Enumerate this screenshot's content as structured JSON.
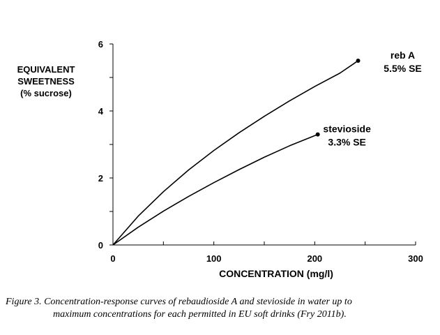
{
  "chart_data": {
    "type": "line",
    "xlabel": "CONCENTRATION (mg/l)",
    "ylabel_lines": [
      "EQUIVALENT",
      "SWEETNESS",
      "(% sucrose)"
    ],
    "xlim": [
      0,
      300
    ],
    "ylim": [
      0,
      6
    ],
    "x_ticks": [
      0,
      100,
      200,
      300
    ],
    "y_ticks": [
      0,
      2,
      4,
      6
    ],
    "grid": false,
    "series": [
      {
        "name": "reb A",
        "end_label": [
          "reb A",
          "5.5% SE"
        ],
        "x": [
          0,
          25,
          50,
          75,
          100,
          125,
          150,
          175,
          200,
          225,
          243
        ],
        "y": [
          0,
          0.86,
          1.59,
          2.24,
          2.82,
          3.35,
          3.84,
          4.3,
          4.73,
          5.13,
          5.5
        ]
      },
      {
        "name": "stevioside",
        "end_label": [
          "stevioside",
          "3.3% SE"
        ],
        "x": [
          0,
          25,
          50,
          75,
          100,
          125,
          150,
          175,
          203
        ],
        "y": [
          0,
          0.53,
          1.01,
          1.45,
          1.86,
          2.25,
          2.62,
          2.96,
          3.3
        ]
      }
    ]
  },
  "caption": {
    "line1": "Figure 3. Concentration-response curves of rebaudioside A and stevioside in water up to",
    "line2": "maximum concentrations for each permitted in EU soft drinks (Fry 2011b)."
  }
}
